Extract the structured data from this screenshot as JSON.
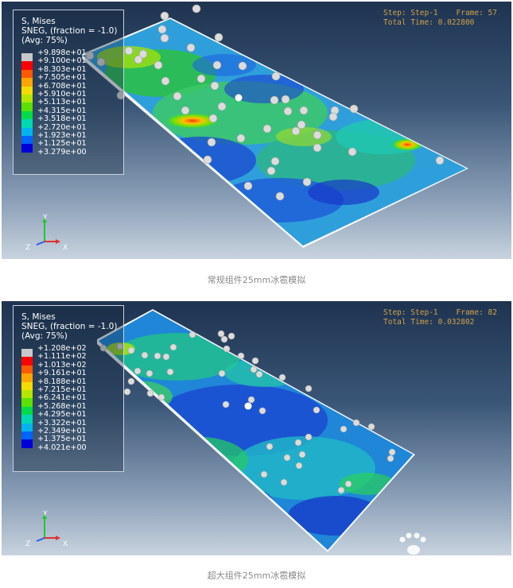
{
  "panels": [
    {
      "legend": {
        "line1": "S, Mises",
        "line2": "SNEG, (fraction = -1.0)",
        "line3": "(Avg: 75%)",
        "values": [
          "+9.898e+01",
          "+9.100e+01",
          "+8.303e+01",
          "+7.505e+01",
          "+6.708e+01",
          "+5.910e+01",
          "+5.113e+01",
          "+4.315e+01",
          "+3.518e+01",
          "+2.720e+01",
          "+1.923e+01",
          "+1.125e+01",
          "+3.279e+00"
        ]
      },
      "step_info": {
        "line1": "Step: Step-1    Frame: 57",
        "line2": "Total Time: 0.022800"
      },
      "triad": {
        "y": "Y",
        "x": "X",
        "z": "Z"
      }
    },
    {
      "legend": {
        "line1": "S, Mises",
        "line2": "SNEG, (fraction = -1.0)",
        "line3": "(Avg: 75%)",
        "values": [
          "+1.208e+02",
          "+1.111e+02",
          "+1.013e+02",
          "+9.161e+01",
          "+8.188e+01",
          "+7.215e+01",
          "+6.241e+01",
          "+5.268e+01",
          "+4.295e+01",
          "+3.322e+01",
          "+2.349e+01",
          "+1.375e+01",
          "+4.021e+00"
        ]
      },
      "step_info": {
        "line1": "Step: Step-1    Frame: 82",
        "line2": "Total Time: 0.032802"
      },
      "triad": {
        "y": "Y",
        "x": "X",
        "z": "Z"
      }
    }
  ],
  "legend_colors": [
    "#c8c8c8",
    "#ff0000",
    "#ff5a00",
    "#ffa500",
    "#f5dc00",
    "#b4e600",
    "#5ae100",
    "#00dc46",
    "#00d8b4",
    "#00b4f0",
    "#0064ff",
    "#0000dc",
    "#1e1e1e"
  ],
  "captions": {
    "caption1": "常规组件25mm冰雹模拟",
    "caption2": "超大组件25mm冰雹模拟"
  }
}
